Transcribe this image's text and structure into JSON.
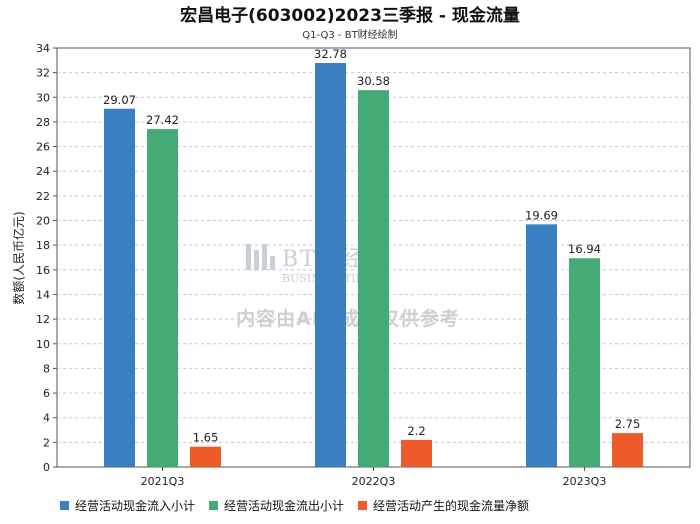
{
  "chart_data": {
    "type": "bar",
    "title": "宏昌电子(603002)2023三季报 - 现金流量",
    "subtitle": "Q1-Q3 - BT财经绘制",
    "ylabel": "数额(人民币亿元)",
    "xlabel": "",
    "categories": [
      "2021Q3",
      "2022Q3",
      "2023Q3"
    ],
    "ylim": [
      0,
      34
    ],
    "yticks": [
      0,
      2,
      4,
      6,
      8,
      10,
      12,
      14,
      16,
      18,
      20,
      22,
      24,
      26,
      28,
      30,
      32,
      34
    ],
    "grid": true,
    "legend_position": "bottom",
    "series": [
      {
        "name": "经营活动现金流入小计",
        "color": "#3a7fc1",
        "values": [
          29.07,
          32.78,
          19.69
        ],
        "labels": [
          "29.07",
          "32.78",
          "19.69"
        ]
      },
      {
        "name": "经营活动现金流出小计",
        "color": "#45ab76",
        "values": [
          27.42,
          30.58,
          16.94
        ],
        "labels": [
          "27.42",
          "30.58",
          "16.94"
        ]
      },
      {
        "name": "经营活动产生的现金流量净额",
        "color": "#ee5a2a",
        "values": [
          1.65,
          2.2,
          2.75
        ],
        "labels": [
          "1.65",
          "2.2",
          "2.75"
        ]
      }
    ]
  },
  "watermark": {
    "brand": "BT财经",
    "brand_sub": "BUSINESSTIMES",
    "generated": "内容由AI生成，仅供参考"
  }
}
